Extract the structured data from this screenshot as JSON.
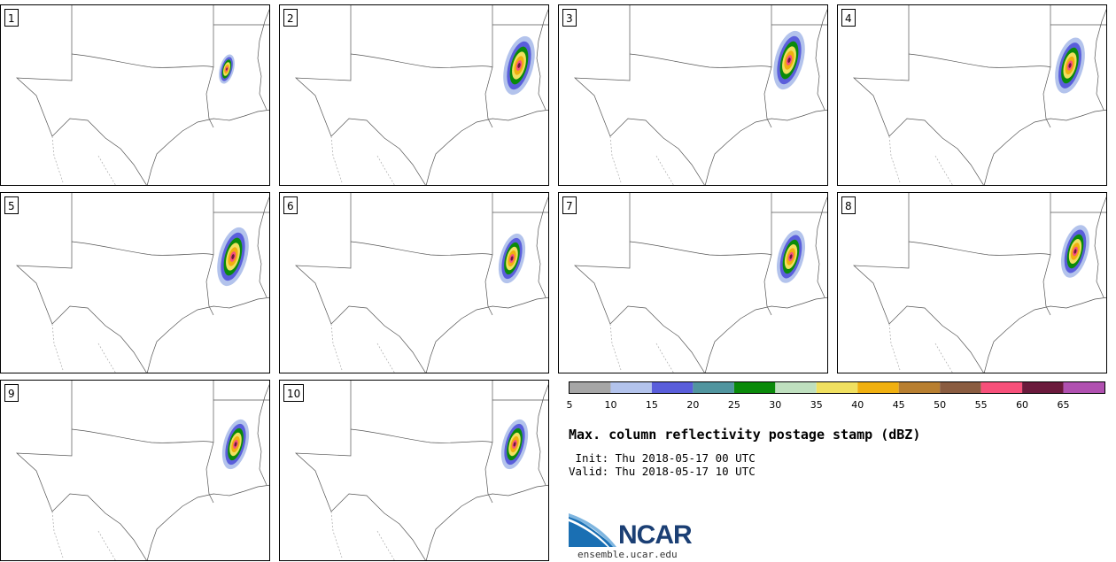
{
  "panels": [
    {
      "label": "1",
      "storm": {
        "cx": 255,
        "cy": 72,
        "s": 0.5
      }
    },
    {
      "label": "2",
      "storm": {
        "cx": 270,
        "cy": 68,
        "s": 1.0
      }
    },
    {
      "label": "3",
      "storm": {
        "cx": 260,
        "cy": 62,
        "s": 1.0
      }
    },
    {
      "label": "4",
      "storm": {
        "cx": 262,
        "cy": 68,
        "s": 0.95
      }
    },
    {
      "label": "5",
      "storm": {
        "cx": 262,
        "cy": 72,
        "s": 1.0
      }
    },
    {
      "label": "6",
      "storm": {
        "cx": 262,
        "cy": 74,
        "s": 0.85
      }
    },
    {
      "label": "7",
      "storm": {
        "cx": 262,
        "cy": 72,
        "s": 0.9
      }
    },
    {
      "label": "8",
      "storm": {
        "cx": 268,
        "cy": 66,
        "s": 0.9
      }
    },
    {
      "label": "9",
      "storm": {
        "cx": 265,
        "cy": 72,
        "s": 0.85
      }
    },
    {
      "label": "10",
      "storm": {
        "cx": 265,
        "cy": 72,
        "s": 0.85
      }
    }
  ],
  "colorbar": {
    "bins": [
      {
        "from": 5,
        "to": 10,
        "color": "#a6a6a6"
      },
      {
        "from": 10,
        "to": 15,
        "color": "#b3c3ec"
      },
      {
        "from": 15,
        "to": 20,
        "color": "#5a5edb"
      },
      {
        "from": 20,
        "to": 25,
        "color": "#51959f"
      },
      {
        "from": 25,
        "to": 30,
        "color": "#0a8a0a"
      },
      {
        "from": 30,
        "to": 35,
        "color": "#bfe0bf"
      },
      {
        "from": 35,
        "to": 40,
        "color": "#f0e060"
      },
      {
        "from": 40,
        "to": 45,
        "color": "#f0b010"
      },
      {
        "from": 45,
        "to": 50,
        "color": "#b87f30"
      },
      {
        "from": 50,
        "to": 55,
        "color": "#8a5c40"
      },
      {
        "from": 55,
        "to": 60,
        "color": "#f7507a"
      },
      {
        "from": 60,
        "to": 65,
        "color": "#6b1a3c"
      },
      {
        "from": 65,
        "to": 70,
        "color": "#b050b0"
      }
    ],
    "ticks": [
      "5",
      "10",
      "15",
      "20",
      "25",
      "30",
      "35",
      "40",
      "45",
      "50",
      "55",
      "60",
      "65"
    ]
  },
  "title": "Max. column reflectivity postage stamp (dBZ)",
  "init": " Init: Thu 2018-05-17 00 UTC",
  "valid": "Valid: Thu 2018-05-17 10 UTC",
  "logo_text": "NCAR",
  "url": "ensemble.ucar.edu"
}
